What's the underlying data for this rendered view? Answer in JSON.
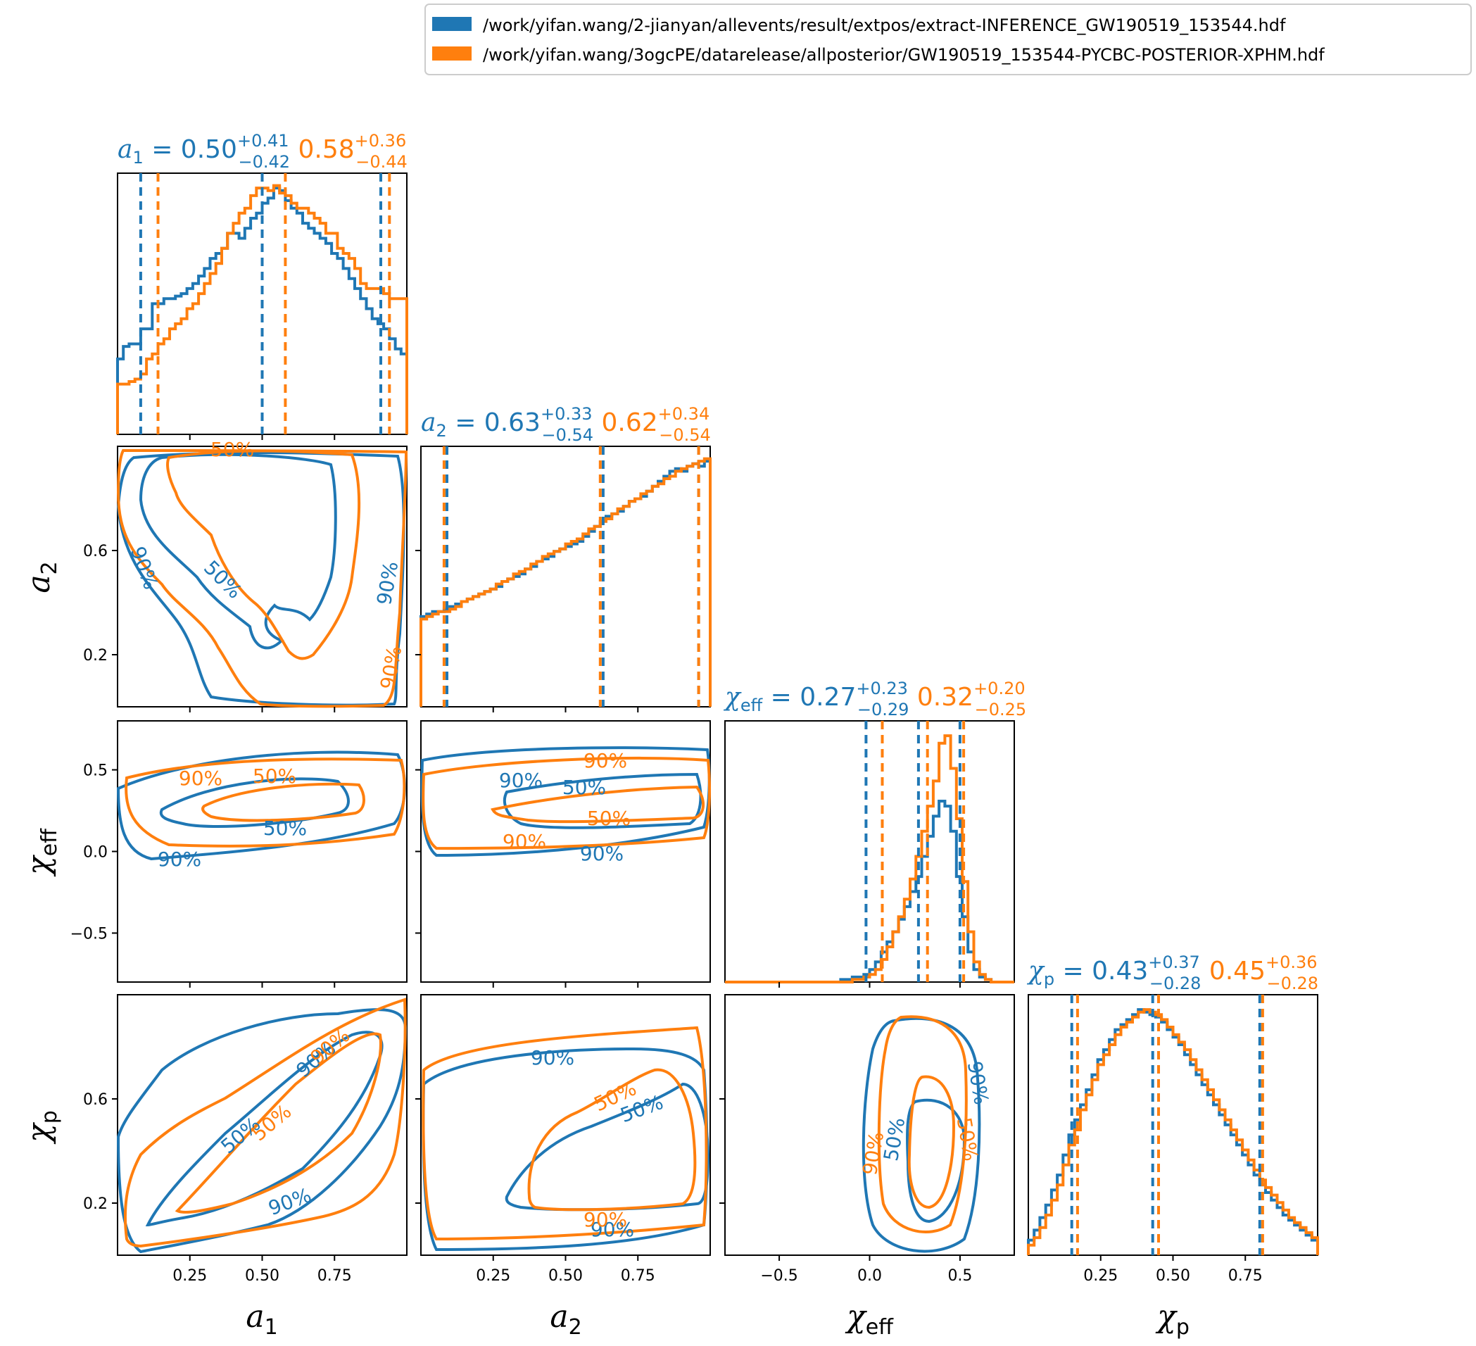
{
  "colors": {
    "series1": "#1f77b4",
    "series2": "#ff7f0e"
  },
  "legend": {
    "placement": "top-right",
    "entries": [
      "/work/yifan.wang/2-jianyan/allevents/result/extpos/extract-INFERENCE_GW190519_153544.hdf",
      "/work/yifan.wang/3ogcPE/datarelease/allposterior/GW190519_153544-PYCBC-POSTERIOR-XPHM.hdf"
    ]
  },
  "chart_data": {
    "type": "corner",
    "parameters": [
      {
        "name": "a1",
        "xlabel": "a_1",
        "xlim": [
          0,
          1
        ],
        "ticks": [
          "0.25",
          "0.50",
          "0.75"
        ],
        "title": {
          "s1": {
            "median": "0.50",
            "plus": "0.41",
            "minus": "0.42"
          },
          "s2": {
            "median": "0.58",
            "plus": "0.36",
            "minus": "0.44"
          }
        },
        "quantiles": {
          "s1": [
            0.08,
            0.5,
            0.91
          ],
          "s2": [
            0.14,
            0.58,
            0.94
          ]
        }
      },
      {
        "name": "a2",
        "xlabel": "a_2",
        "xlim": [
          0,
          1
        ],
        "ticks": [
          "0.2",
          "0.6",
          "0.25",
          "0.50",
          "0.75"
        ],
        "title": {
          "s1": {
            "median": "0.63",
            "plus": "0.33",
            "minus": "0.54"
          },
          "s2": {
            "median": "0.62",
            "plus": "0.34",
            "minus": "0.54"
          }
        },
        "quantiles": {
          "s1": [
            0.09,
            0.63,
            0.96
          ],
          "s2": [
            0.08,
            0.62,
            0.96
          ]
        }
      },
      {
        "name": "chi_eff",
        "xlabel": "χ_eff",
        "xlim": [
          -0.8,
          0.8
        ],
        "ticks": [
          "0.5",
          "0.0",
          "−0.5"
        ],
        "title": {
          "s1": {
            "median": "0.27",
            "plus": "0.23",
            "minus": "0.29"
          },
          "s2": {
            "median": "0.32",
            "plus": "0.20",
            "minus": "0.25"
          }
        },
        "quantiles": {
          "s1": [
            -0.02,
            0.27,
            0.5
          ],
          "s2": [
            0.07,
            0.32,
            0.52
          ]
        }
      },
      {
        "name": "chi_p",
        "xlabel": "χ_p",
        "xlim": [
          0,
          1
        ],
        "ticks": [
          "0.2",
          "0.6",
          "0.25",
          "0.50",
          "0.75"
        ],
        "title": {
          "s1": {
            "median": "0.43",
            "plus": "0.37",
            "minus": "0.28"
          },
          "s2": {
            "median": "0.45",
            "plus": "0.36",
            "minus": "0.28"
          }
        },
        "quantiles": {
          "s1": [
            0.15,
            0.43,
            0.8
          ],
          "s2": [
            0.17,
            0.45,
            0.81
          ]
        }
      }
    ],
    "tick_labels": {
      "a1_x": [
        "0.25",
        "0.50",
        "0.75"
      ],
      "a2_x": [
        "0.25",
        "0.50",
        "0.75"
      ],
      "chieff_x": [
        "−0.5",
        "0.0",
        "0.5"
      ],
      "chip_x": [
        "0.25",
        "0.50",
        "0.75"
      ],
      "a2_y": [
        "0.6",
        "0.2"
      ],
      "chieff_y": [
        "0.5",
        "0.0",
        "−0.5"
      ],
      "chip_y": [
        "0.6",
        "0.2"
      ]
    },
    "contour_labels": [
      "50%",
      "90%"
    ],
    "histograms": {
      "a1": {
        "s1": [
          0.3,
          0.35,
          0.36,
          0.36,
          0.42,
          0.42,
          0.52,
          0.52,
          0.54,
          0.54,
          0.55,
          0.56,
          0.58,
          0.6,
          0.63,
          0.66,
          0.7,
          0.72,
          0.74,
          0.8,
          0.8,
          0.78,
          0.82,
          0.86,
          0.88,
          0.92,
          0.94,
          0.98,
          0.97,
          0.93,
          0.9,
          0.88,
          0.84,
          0.82,
          0.8,
          0.78,
          0.76,
          0.72,
          0.7,
          0.66,
          0.62,
          0.58,
          0.54,
          0.5,
          0.46,
          0.44,
          0.42,
          0.38,
          0.34,
          0.32
        ],
        "s2": [
          0.2,
          0.2,
          0.21,
          0.22,
          0.24,
          0.3,
          0.32,
          0.36,
          0.38,
          0.42,
          0.44,
          0.46,
          0.5,
          0.52,
          0.56,
          0.6,
          0.64,
          0.68,
          0.74,
          0.8,
          0.84,
          0.88,
          0.9,
          0.95,
          0.98,
          0.98,
          0.97,
          0.99,
          0.96,
          0.95,
          0.92,
          0.9,
          0.9,
          0.88,
          0.86,
          0.84,
          0.8,
          0.8,
          0.74,
          0.72,
          0.7,
          0.66,
          0.6,
          0.58,
          0.58,
          0.58,
          0.56,
          0.54,
          0.54,
          0.54
        ]
      },
      "a2": {
        "s1": [
          0.36,
          0.37,
          0.38,
          0.38,
          0.39,
          0.4,
          0.41,
          0.42,
          0.43,
          0.44,
          0.45,
          0.46,
          0.47,
          0.48,
          0.5,
          0.51,
          0.52,
          0.53,
          0.55,
          0.56,
          0.58,
          0.59,
          0.6,
          0.62,
          0.63,
          0.64,
          0.65,
          0.66,
          0.68,
          0.7,
          0.72,
          0.74,
          0.76,
          0.77,
          0.78,
          0.8,
          0.82,
          0.83,
          0.84,
          0.86,
          0.88,
          0.9,
          0.92,
          0.94,
          0.95,
          0.94,
          0.96,
          0.97,
          0.96,
          0.98
        ],
        "s2": [
          0.35,
          0.36,
          0.37,
          0.38,
          0.38,
          0.39,
          0.4,
          0.42,
          0.43,
          0.44,
          0.45,
          0.46,
          0.47,
          0.49,
          0.5,
          0.51,
          0.53,
          0.54,
          0.55,
          0.57,
          0.58,
          0.6,
          0.61,
          0.62,
          0.63,
          0.65,
          0.66,
          0.67,
          0.69,
          0.71,
          0.72,
          0.74,
          0.75,
          0.77,
          0.79,
          0.8,
          0.82,
          0.83,
          0.85,
          0.86,
          0.88,
          0.89,
          0.91,
          0.92,
          0.94,
          0.95,
          0.96,
          0.97,
          0.98,
          0.99
        ]
      },
      "chi_eff": {
        "s1": [
          0,
          0,
          0,
          0,
          0,
          0,
          0,
          0,
          0,
          0,
          0,
          0,
          0,
          0,
          0,
          0,
          0,
          0,
          0,
          0,
          0.01,
          0.01,
          0.02,
          0.02,
          0.03,
          0.05,
          0.08,
          0.12,
          0.16,
          0.2,
          0.25,
          0.3,
          0.36,
          0.42,
          0.5,
          0.58,
          0.66,
          0.72,
          0.7,
          0.6,
          0.42,
          0.26,
          0.12,
          0.05,
          0.02,
          0.01,
          0,
          0,
          0,
          0
        ],
        "s2": [
          0,
          0,
          0,
          0,
          0,
          0,
          0,
          0,
          0,
          0,
          0,
          0,
          0,
          0,
          0,
          0,
          0,
          0,
          0,
          0,
          0,
          0,
          0.01,
          0.01,
          0.02,
          0.03,
          0.05,
          0.09,
          0.14,
          0.2,
          0.26,
          0.33,
          0.41,
          0.5,
          0.6,
          0.7,
          0.8,
          0.95,
          0.98,
          0.85,
          0.65,
          0.4,
          0.2,
          0.08,
          0.03,
          0.01,
          0,
          0,
          0,
          0
        ]
      },
      "chi_p": {
        "s1": [
          0.06,
          0.1,
          0.15,
          0.2,
          0.26,
          0.32,
          0.4,
          0.48,
          0.54,
          0.6,
          0.66,
          0.72,
          0.78,
          0.82,
          0.86,
          0.9,
          0.92,
          0.94,
          0.96,
          0.98,
          0.97,
          0.96,
          0.95,
          0.93,
          0.9,
          0.87,
          0.84,
          0.8,
          0.76,
          0.72,
          0.68,
          0.64,
          0.6,
          0.56,
          0.52,
          0.48,
          0.44,
          0.4,
          0.36,
          0.32,
          0.28,
          0.25,
          0.22,
          0.19,
          0.16,
          0.14,
          0.12,
          0.1,
          0.08,
          0.06
        ],
        "s2": [
          0.04,
          0.07,
          0.11,
          0.16,
          0.22,
          0.28,
          0.36,
          0.44,
          0.5,
          0.58,
          0.64,
          0.7,
          0.76,
          0.8,
          0.84,
          0.88,
          0.91,
          0.93,
          0.95,
          0.97,
          0.98,
          0.97,
          0.96,
          0.94,
          0.91,
          0.88,
          0.85,
          0.82,
          0.78,
          0.74,
          0.7,
          0.66,
          0.62,
          0.58,
          0.54,
          0.5,
          0.46,
          0.42,
          0.38,
          0.34,
          0.3,
          0.27,
          0.24,
          0.21,
          0.18,
          0.15,
          0.13,
          0.11,
          0.09,
          0.07
        ]
      }
    }
  }
}
